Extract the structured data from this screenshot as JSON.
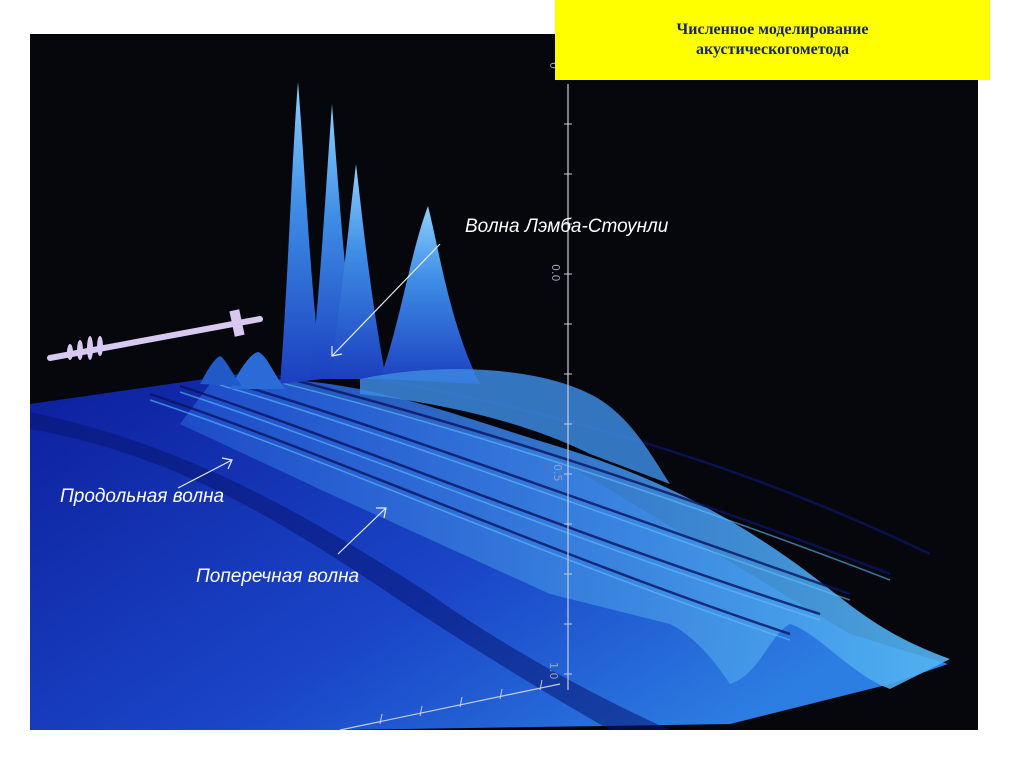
{
  "title": {
    "line1": "Численное моделирование",
    "line2": "акустическогометода"
  },
  "labels": {
    "lamb_stoneley": "Волна Лэмба-Стоунли",
    "longitudinal": "Продольная волна",
    "transverse": "Поперечная волна"
  },
  "axis": {
    "tick_top": "0",
    "tick_mid1": "0.0",
    "tick_mid2": "0.5",
    "tick_bottom": "1.0"
  },
  "colors": {
    "background": "#05070d",
    "title_box": "#ffff00",
    "title_text": "#1a237e",
    "surface_dark": "#0a1a8a",
    "surface_light": "#3aa6f0"
  }
}
